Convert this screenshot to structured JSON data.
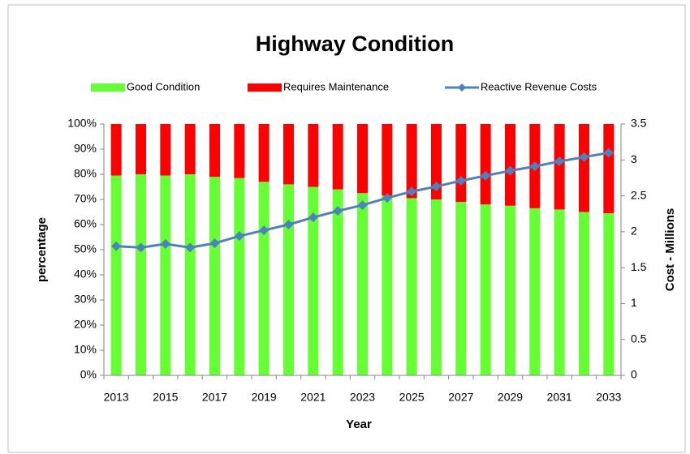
{
  "chart_data": {
    "type": "stacked_bar_line",
    "title": "Highway Condition",
    "x_label": "Year",
    "y_label": "percentage",
    "y2_label": "Cost - Millions",
    "categories": [
      "2013",
      null,
      "2015",
      null,
      "2017",
      null,
      "2019",
      null,
      "2021",
      null,
      "2023",
      null,
      "2025",
      null,
      "2027",
      null,
      "2029",
      null,
      "2031",
      null,
      "2033"
    ],
    "series": [
      {
        "name": "Good Condition",
        "color": "#66ff33",
        "type": "bar",
        "values": [
          79.5,
          80,
          79.5,
          80,
          79,
          78.5,
          77,
          76,
          75,
          74,
          72.5,
          71.5,
          70.5,
          70,
          69,
          68,
          67.5,
          66.5,
          66,
          65,
          64.5
        ]
      },
      {
        "name": "Requires Maintenance",
        "color": "#ff0000",
        "type": "bar",
        "values": [
          20.5,
          20,
          20.5,
          20,
          21,
          21.5,
          23,
          24,
          25,
          26,
          27.5,
          28.5,
          29.5,
          30,
          31,
          32,
          32.5,
          33.5,
          34,
          35,
          35.5
        ]
      },
      {
        "name": "Reactive Revenue Costs",
        "color": "#4f81bd",
        "type": "line",
        "axis": "y2",
        "values": [
          1.8,
          1.78,
          1.83,
          1.78,
          1.84,
          1.94,
          2.02,
          2.1,
          2.2,
          2.29,
          2.37,
          2.47,
          2.56,
          2.63,
          2.71,
          2.78,
          2.85,
          2.91,
          2.98,
          3.04,
          3.1
        ]
      }
    ],
    "ylim": [
      0,
      100
    ],
    "yticks": [
      {
        "value": 0,
        "label": "0%"
      },
      {
        "value": 10,
        "label": "10%"
      },
      {
        "value": 20,
        "label": "20%"
      },
      {
        "value": 30,
        "label": "30%"
      },
      {
        "value": 40,
        "label": "40%"
      },
      {
        "value": 50,
        "label": "50%"
      },
      {
        "value": 60,
        "label": "60%"
      },
      {
        "value": 70,
        "label": "70%"
      },
      {
        "value": 80,
        "label": "80%"
      },
      {
        "value": 90,
        "label": "90%"
      },
      {
        "value": 100,
        "label": "100%"
      }
    ],
    "y2lim": [
      0,
      3.5
    ],
    "y2ticks": [
      0,
      0.5,
      1,
      1.5,
      2,
      2.5,
      3,
      3.5
    ],
    "legend": "top",
    "grid": false
  }
}
